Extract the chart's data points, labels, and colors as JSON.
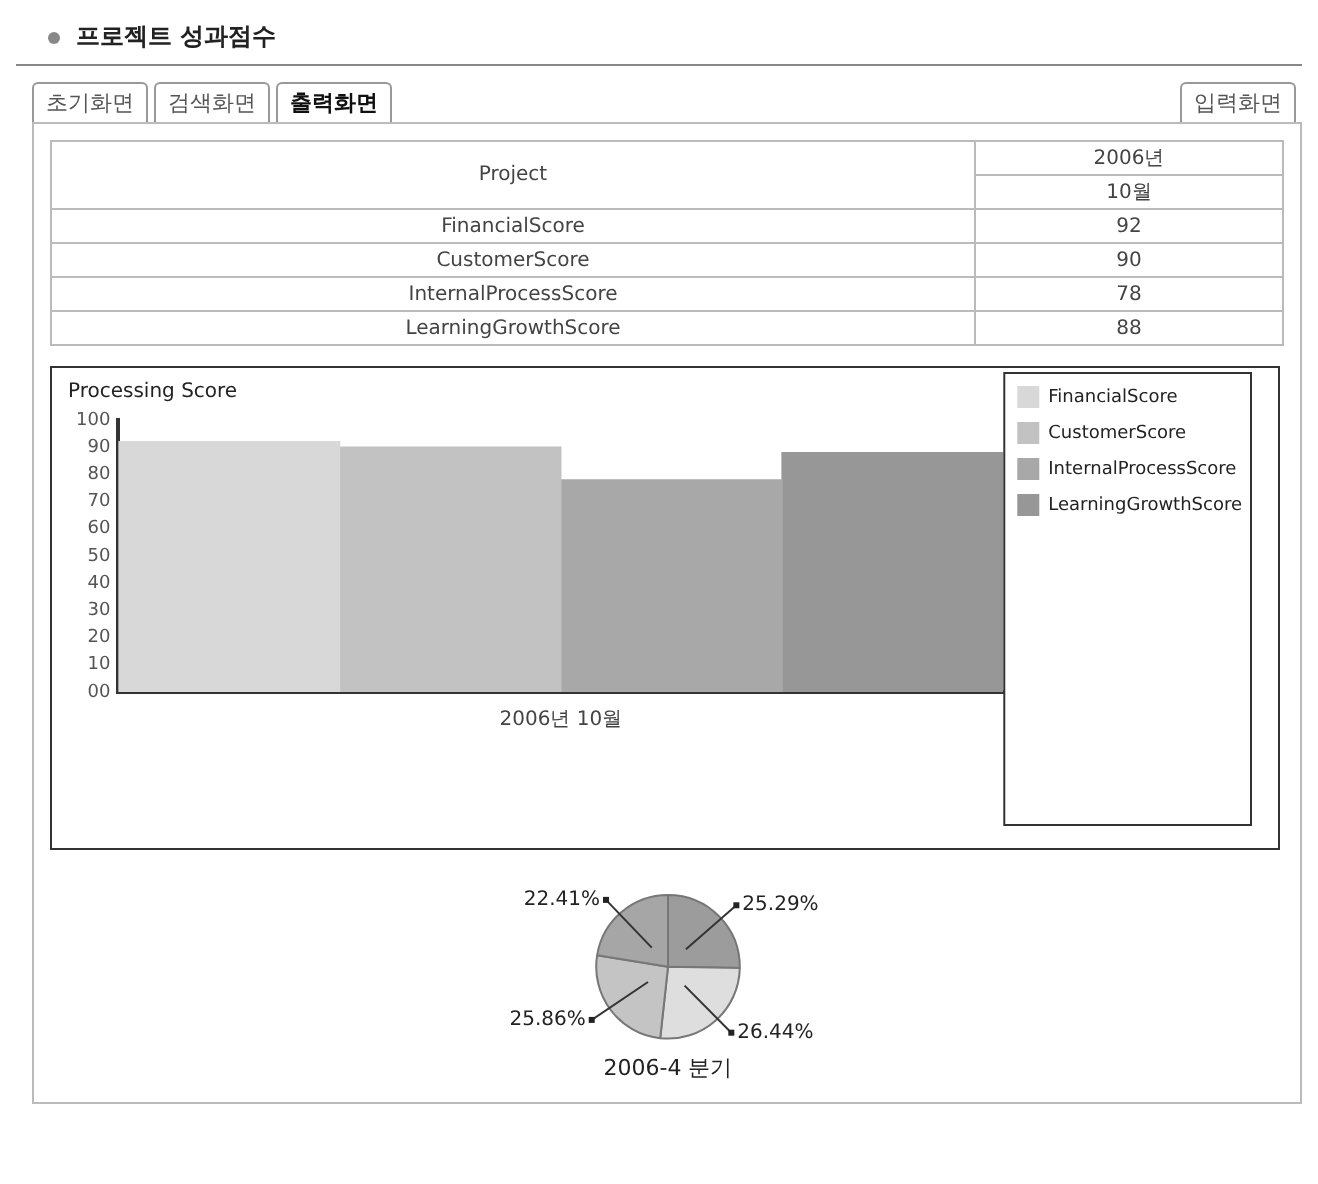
{
  "chart_data": [
    {
      "type": "other",
      "title": "프로젝트 성과점수",
      "categories": [
        "FinancialScore",
        "CustomerScore",
        "InternalProcessScore",
        "LearningGrowthScore"
      ],
      "values": [
        92,
        90,
        78,
        88
      ],
      "data_labels": true,
      "annotations": [
        "초기화면",
        "검색화면",
        "출력화면",
        "입력화면",
        "Project",
        "2006년",
        "10월"
      ]
    },
    {
      "type": "bar",
      "title": "Processing Score",
      "categories": [
        "2006년 10월"
      ],
      "series": [
        {
          "name": "FinancialScore",
          "color": "#d8d8d8",
          "values": [
            92
          ]
        },
        {
          "name": "CustomerScore",
          "color": "#c2c2c2",
          "values": [
            90
          ]
        },
        {
          "name": "InternalProcessScore",
          "color": "#a8a8a8",
          "values": [
            78
          ]
        },
        {
          "name": "LearningGrowthScore",
          "color": "#979797",
          "values": [
            88
          ]
        }
      ],
      "ylim": [
        0,
        100
      ],
      "yticks": [
        {
          "value": 0,
          "label": "00"
        },
        10,
        20,
        30,
        40,
        50,
        60,
        70,
        80,
        90,
        100
      ],
      "grid": false,
      "legend": "right"
    },
    {
      "type": "pie",
      "title": "2006-4 분기",
      "categories": [
        null,
        null,
        null,
        null
      ],
      "values": [
        25.29,
        26.44,
        25.86,
        22.41
      ],
      "colors": [
        "#9c9c9c",
        "#dedede",
        "#c4c4c4",
        "#a6a6a6"
      ],
      "value_labels": [
        "25.29%",
        "26.44%",
        "25.86%",
        "22.41%"
      ]
    }
  ]
}
